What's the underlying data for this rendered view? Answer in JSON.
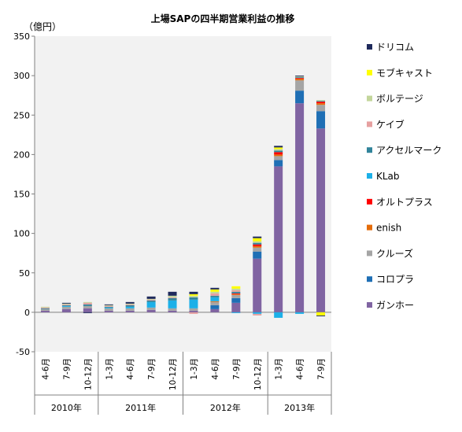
{
  "chart_data": {
    "type": "bar",
    "stacked": true,
    "title": "上場SAPの四半期営業利益の推移",
    "unit_label": "（億円）",
    "ylim": [
      -50,
      350
    ],
    "yticks": [
      -50,
      0,
      50,
      100,
      150,
      200,
      250,
      300,
      350
    ],
    "grid": false,
    "legend_position": "right",
    "categories": [
      "4-6月",
      "7-9月",
      "10-12月",
      "1-3月",
      "4-6月",
      "7-9月",
      "10-12月",
      "1-3月",
      "4-6月",
      "7-9月",
      "10-12月",
      "1-3月",
      "4-6月",
      "7-9月"
    ],
    "year_groups": [
      {
        "label": "2010年",
        "count": 3
      },
      {
        "label": "2011年",
        "count": 4
      },
      {
        "label": "2012年",
        "count": 4
      },
      {
        "label": "2013年",
        "count": 3
      }
    ],
    "series": [
      {
        "name": "ガンホー",
        "color": "#8064A2",
        "values": [
          2,
          4,
          5,
          2,
          2,
          3,
          2,
          2,
          4,
          12,
          68,
          185,
          265,
          233
        ]
      },
      {
        "name": "コロプラ",
        "color": "#1F6FB5",
        "values": [
          0,
          0,
          0,
          0,
          0,
          0,
          0,
          0,
          5,
          6,
          9,
          8,
          16,
          22
        ]
      },
      {
        "name": "クルーズ",
        "color": "#A5A5A5",
        "values": [
          2,
          3,
          3,
          3,
          3,
          3,
          3,
          3,
          4,
          4,
          5,
          5,
          13,
          8
        ]
      },
      {
        "name": "enish",
        "color": "#E46C0A",
        "values": [
          0,
          0,
          0,
          0,
          0,
          0,
          0,
          0,
          1,
          1,
          2,
          2,
          2,
          2
        ]
      },
      {
        "name": "オルトプラス",
        "color": "#FF0000",
        "values": [
          0,
          0,
          0,
          0,
          0,
          0,
          0,
          0,
          0,
          1,
          2,
          3,
          1,
          2
        ]
      },
      {
        "name": "KLab",
        "color": "#1CB0E8",
        "values": [
          0,
          1,
          0,
          1,
          2,
          7,
          10,
          11,
          5,
          -1,
          -2,
          -7,
          -2,
          0
        ]
      },
      {
        "name": "アクセルマーク",
        "color": "#31849B",
        "values": [
          1,
          1,
          2,
          1,
          2,
          2,
          3,
          3,
          2,
          2,
          2,
          2,
          1,
          1
        ]
      },
      {
        "name": "ケイブ",
        "color": "#E6A0A0",
        "values": [
          1,
          1,
          2,
          1,
          1,
          1,
          1,
          -2,
          3,
          2,
          -2,
          0,
          0,
          0
        ]
      },
      {
        "name": "ボルテージ",
        "color": "#C3D69B",
        "values": [
          1,
          1,
          1,
          1,
          1,
          1,
          2,
          2,
          2,
          2,
          2,
          2,
          1,
          1
        ]
      },
      {
        "name": "モブキャスト",
        "color": "#FFFF00",
        "values": [
          0,
          0,
          0,
          0,
          0,
          0,
          0,
          2,
          3,
          3,
          4,
          2,
          0,
          -4
        ]
      },
      {
        "name": "ドリコム",
        "color": "#1F2A5C",
        "values": [
          0,
          1,
          -1,
          1,
          2,
          3,
          5,
          3,
          2,
          0,
          2,
          2,
          1,
          -1
        ]
      }
    ],
    "legend_order": [
      "ドリコム",
      "モブキャスト",
      "ボルテージ",
      "ケイブ",
      "アクセルマーク",
      "KLab",
      "オルトプラス",
      "enish",
      "クルーズ",
      "コロプラ",
      "ガンホー"
    ]
  }
}
